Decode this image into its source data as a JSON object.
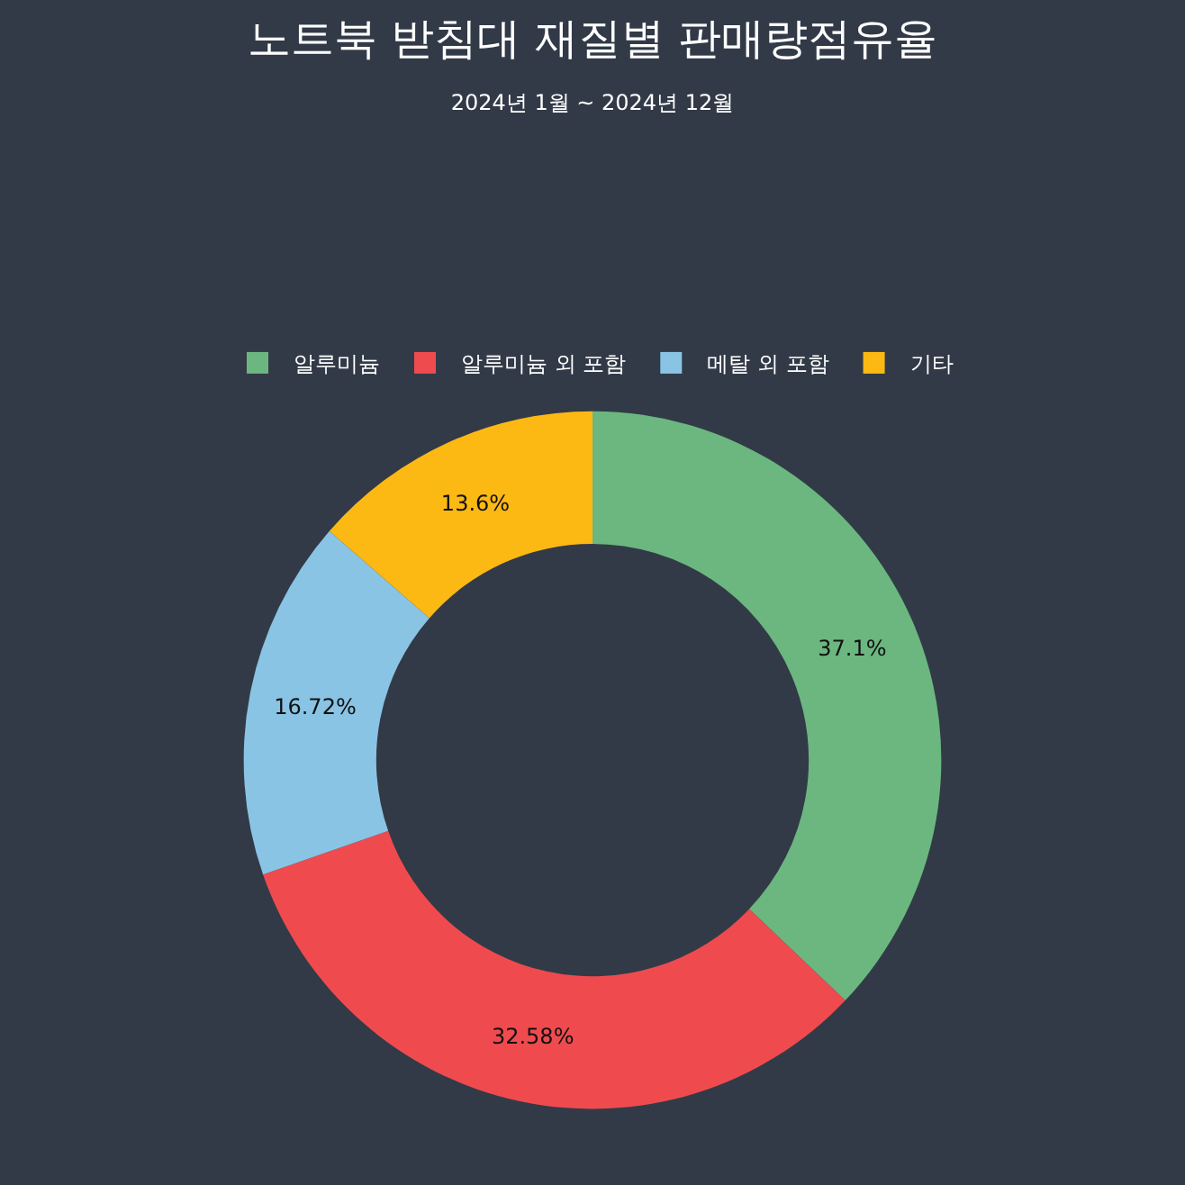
{
  "chart_data": {
    "type": "donut",
    "title": "노트북 받침대 재질별 판매량점유율",
    "subtitle": "2024년 1월 ~ 2024년 12월",
    "categories": [
      "알루미늄",
      "알루미늄 외 포함",
      "메탈 외 포함",
      "기타"
    ],
    "values": [
      37.1,
      32.58,
      16.72,
      13.6
    ],
    "colors": [
      "#6bb77f",
      "#ef4b4f",
      "#89c4e4",
      "#fdb913"
    ],
    "value_labels": [
      "37.1%",
      "32.58%",
      "16.72%",
      "13.6%"
    ],
    "legend": "top"
  }
}
